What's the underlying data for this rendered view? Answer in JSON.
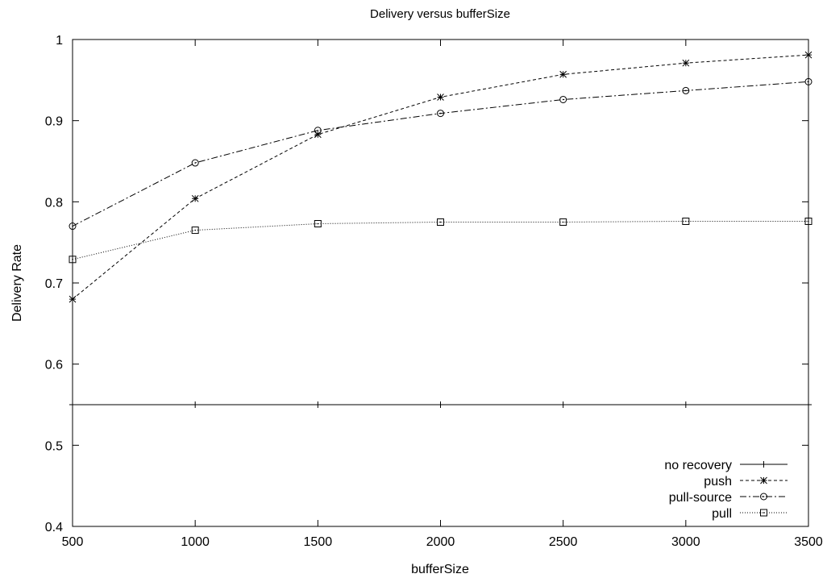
{
  "chart_data": {
    "type": "line",
    "title": "Delivery versus bufferSize",
    "xlabel": "bufferSize",
    "ylabel": "Delivery Rate",
    "xlim": [
      500,
      3500
    ],
    "ylim": [
      0.4,
      1.0
    ],
    "x_ticks": [
      500,
      1000,
      1500,
      2000,
      2500,
      3000,
      3500
    ],
    "y_ticks": [
      0.4,
      0.5,
      0.6,
      0.7,
      0.8,
      0.9,
      1.0
    ],
    "x_tick_labels": [
      "500",
      "1000",
      "1500",
      "2000",
      "2500",
      "3000",
      "3500"
    ],
    "y_tick_labels": [
      "0.4",
      "0.5",
      "0.6",
      "0.7",
      "0.8",
      "0.9",
      "1"
    ],
    "x": [
      500,
      1000,
      1500,
      2000,
      2500,
      3000,
      3500
    ],
    "grid": false,
    "legend_position": "bottom-right",
    "series": [
      {
        "name": "no recovery",
        "marker": "plus",
        "line_style": "solid",
        "values": [
          0.55,
          0.55,
          0.55,
          0.55,
          0.55,
          0.55,
          0.55
        ]
      },
      {
        "name": "push",
        "marker": "star",
        "line_style": "dashed",
        "values": [
          0.68,
          0.804,
          0.883,
          0.929,
          0.957,
          0.971,
          0.981
        ]
      },
      {
        "name": "pull-source",
        "marker": "circle",
        "line_style": "dash-dot",
        "values": [
          0.77,
          0.848,
          0.888,
          0.909,
          0.926,
          0.937,
          0.948
        ]
      },
      {
        "name": "pull",
        "marker": "square",
        "line_style": "dotted",
        "values": [
          0.729,
          0.765,
          0.773,
          0.775,
          0.775,
          0.776,
          0.776
        ]
      }
    ]
  }
}
